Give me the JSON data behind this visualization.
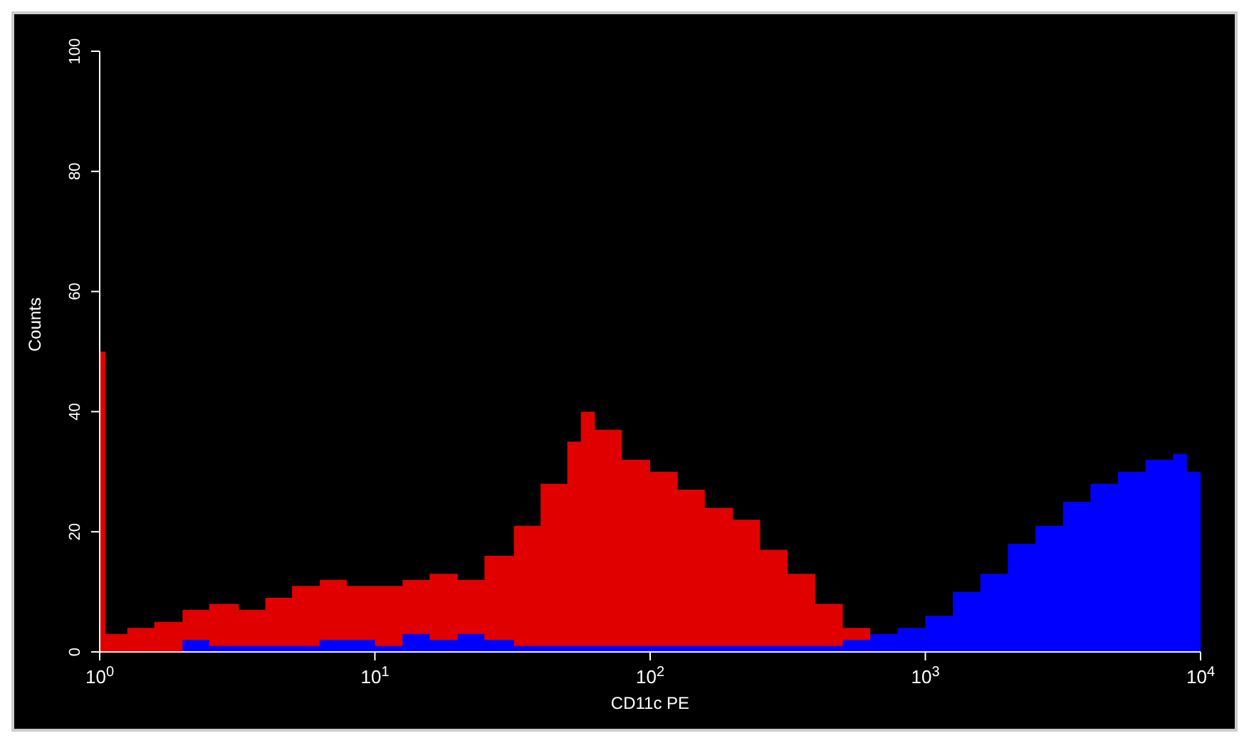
{
  "chart_data": {
    "type": "area",
    "xlabel": "CD11c PE",
    "ylabel": "Counts",
    "log": "x",
    "xlim": [
      1,
      10000
    ],
    "ylim": [
      0,
      100
    ],
    "xticks": [
      {
        "value": 1,
        "label": "10$^{0}$"
      },
      {
        "value": 10,
        "label": "10$^{1}$"
      },
      {
        "value": 100,
        "label": "10$^{2}$"
      },
      {
        "value": 1000,
        "label": "10$^{3}$"
      },
      {
        "value": 10000,
        "label": "10$^{4}$"
      }
    ],
    "yticks": [
      0,
      20,
      40,
      60,
      80,
      100
    ],
    "series": [
      {
        "color": "#e00000",
        "x": [
          1,
          1.05,
          1.26,
          1.58,
          2,
          2.5,
          3.2,
          4,
          5,
          6.3,
          7.9,
          10,
          12.6,
          15.8,
          20,
          25,
          32,
          40,
          50,
          56,
          63,
          79,
          100,
          126,
          158,
          200,
          251,
          316,
          398,
          501,
          631
        ],
        "values": [
          50,
          3,
          4,
          5,
          7,
          8,
          7,
          9,
          11,
          12,
          11,
          11,
          12,
          13,
          12,
          16,
          21,
          28,
          35,
          40,
          37,
          32,
          30,
          27,
          24,
          22,
          17,
          13,
          8,
          4,
          4
        ]
      },
      {
        "color": "#0000ff",
        "x": [
          1,
          1.6,
          2,
          2.5,
          3.2,
          4,
          5,
          6.3,
          7.9,
          10,
          12.6,
          15.8,
          20,
          25,
          32,
          40,
          50,
          63,
          79,
          100,
          126,
          158,
          200,
          251,
          316,
          398,
          501,
          631,
          794,
          1000,
          1259,
          1585,
          1995,
          2512,
          3162,
          3981,
          5012,
          6310,
          7943,
          8913,
          10000
        ],
        "values": [
          0,
          0,
          2,
          1,
          1,
          1,
          1,
          2,
          2,
          1,
          3,
          2,
          3,
          2,
          1,
          1,
          1,
          1,
          1,
          1,
          1,
          1,
          1,
          1,
          1,
          1,
          2,
          3,
          4,
          6,
          10,
          13,
          18,
          21,
          25,
          28,
          30,
          32,
          33,
          30,
          28
        ]
      }
    ]
  }
}
